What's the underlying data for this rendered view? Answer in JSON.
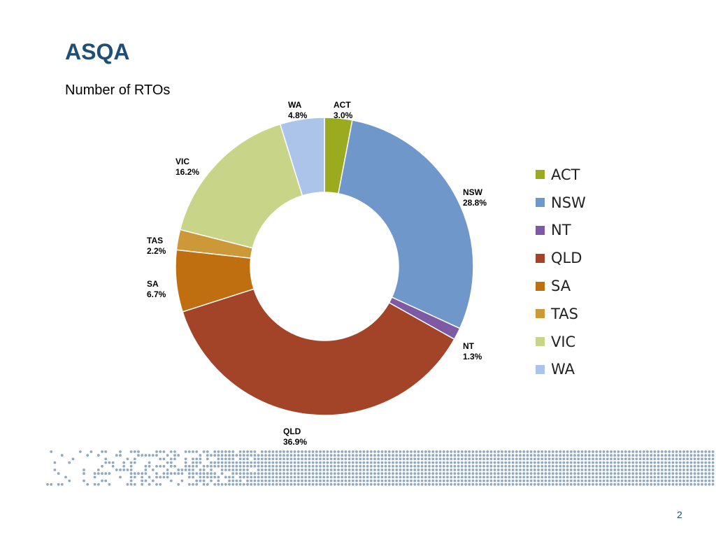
{
  "slide": {
    "title": "ASQA",
    "subtitle": "Number of RTOs",
    "page_number": "2"
  },
  "chart_data": {
    "type": "pie",
    "title": "Number of RTOs",
    "series": [
      {
        "name": "ACT",
        "value": 3.0,
        "label": "3.0%",
        "color": "#9aab1f"
      },
      {
        "name": "NSW",
        "value": 28.8,
        "label": "28.8%",
        "color": "#6f97c9"
      },
      {
        "name": "NT",
        "value": 1.3,
        "label": "1.3%",
        "color": "#7e5aa5"
      },
      {
        "name": "QLD",
        "value": 36.9,
        "label": "36.9%",
        "color": "#a34328"
      },
      {
        "name": "SA",
        "value": 6.7,
        "label": "6.7%",
        "color": "#bf6f10"
      },
      {
        "name": "TAS",
        "value": 2.2,
        "label": "2.2%",
        "color": "#cc9838"
      },
      {
        "name": "VIC",
        "value": 16.2,
        "label": "16.2%",
        "color": "#c8d588"
      },
      {
        "name": "WA",
        "value": 4.8,
        "label": "4.8%",
        "color": "#acc4ea"
      }
    ],
    "legend_placement": "right",
    "hole": "donut"
  },
  "decoration": {
    "dot_color": "#8fa9c2"
  }
}
